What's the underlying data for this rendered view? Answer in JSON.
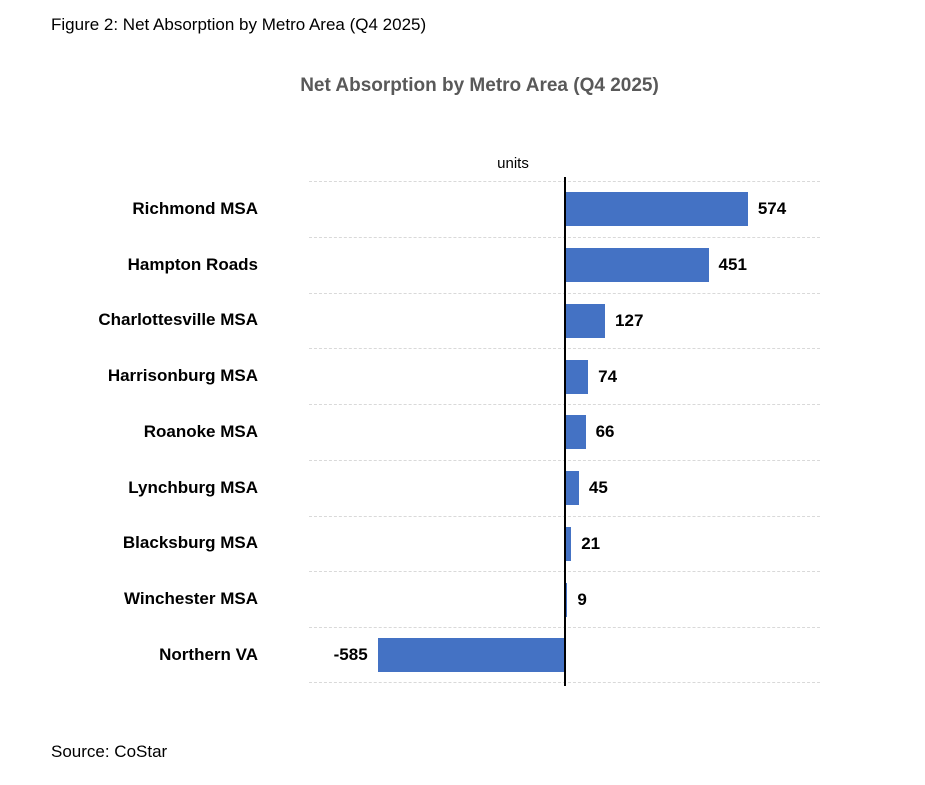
{
  "figure_caption": "Figure 2: Net Absorption by Metro Area (Q4 2025)",
  "source_note": "Source: CoStar",
  "chart_data": {
    "type": "bar",
    "orientation": "horizontal",
    "title": "Net Absorption by Metro Area (Q4 2025)",
    "xlabel": "units",
    "categories": [
      "Richmond MSA",
      "Hampton Roads",
      "Charlottesville MSA",
      "Harrisonburg MSA",
      "Roanoke MSA",
      "Lynchburg MSA",
      "Blacksburg MSA",
      "Winchester MSA",
      "Northern VA"
    ],
    "values": [
      574,
      451,
      127,
      74,
      66,
      45,
      21,
      9,
      -585
    ],
    "data_labels": [
      "574",
      "451",
      "127",
      "74",
      "66",
      "45",
      "21",
      "9",
      "-585"
    ],
    "xlim": [
      -800,
      800
    ],
    "grid": "horizontal dashed row separators",
    "legend": "none",
    "bar_color": "#4472C4",
    "title_color": "#595959",
    "gridline_color": "#D9D9D9",
    "axis_line_color": "#000000"
  }
}
